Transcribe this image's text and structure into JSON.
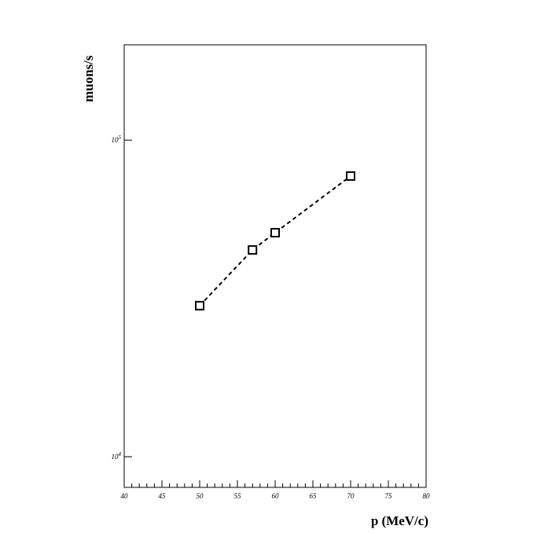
{
  "chart_data": {
    "type": "line",
    "x_label": "p (MeV/c)",
    "y_label": "muons/s",
    "x": [
      50,
      57,
      60,
      70
    ],
    "series": [
      {
        "color": "#000000",
        "values": [
          30000,
          45000,
          51000,
          77000
        ]
      }
    ],
    "xlim": [
      40,
      80
    ],
    "xticks": [
      40,
      45,
      50,
      55,
      60,
      65,
      70,
      75,
      80
    ],
    "ylim": [
      8000,
      200000
    ],
    "log_y": true,
    "yticks": [
      {
        "value": 10000,
        "label": "10",
        "exponent": "4"
      },
      {
        "value": 100000,
        "label": "10",
        "exponent": "5"
      }
    ],
    "line_style": "dashed",
    "marker": "square"
  }
}
